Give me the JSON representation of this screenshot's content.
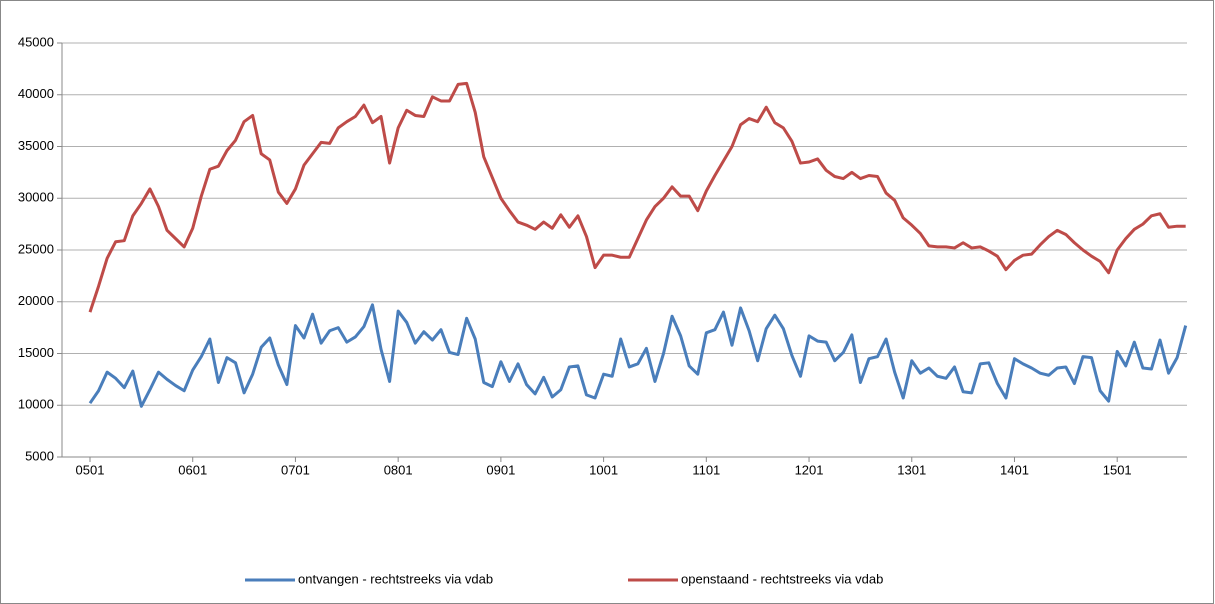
{
  "chart_data": {
    "type": "line",
    "categories": [
      "0501",
      null,
      null,
      null,
      null,
      null,
      null,
      null,
      null,
      null,
      null,
      null,
      "0601",
      null,
      null,
      null,
      null,
      null,
      null,
      null,
      null,
      null,
      null,
      null,
      "0701",
      null,
      null,
      null,
      null,
      null,
      null,
      null,
      null,
      null,
      null,
      null,
      "0801",
      null,
      null,
      null,
      null,
      null,
      null,
      null,
      null,
      null,
      null,
      null,
      "0901",
      null,
      null,
      null,
      null,
      null,
      null,
      null,
      null,
      null,
      null,
      null,
      "1001",
      null,
      null,
      null,
      null,
      null,
      null,
      null,
      null,
      null,
      null,
      null,
      "1101",
      null,
      null,
      null,
      null,
      null,
      null,
      null,
      null,
      null,
      null,
      null,
      "1201",
      null,
      null,
      null,
      null,
      null,
      null,
      null,
      null,
      null,
      null,
      null,
      "1301",
      null,
      null,
      null,
      null,
      null,
      null,
      null,
      null,
      null,
      null,
      null,
      "1401",
      null,
      null,
      null,
      null,
      null,
      null,
      null,
      null,
      null,
      null,
      null,
      "1501",
      null,
      null,
      null,
      null,
      null,
      null,
      null,
      null
    ],
    "series": [
      {
        "name": "ontvangen - rechtstreeks via vdab",
        "color": "#4a7ebb",
        "values": [
          10200,
          11400,
          13200,
          12600,
          11700,
          13300,
          9900,
          11500,
          13200,
          12500,
          11900,
          11400,
          13400,
          14700,
          16400,
          12200,
          14600,
          14100,
          11200,
          13000,
          15600,
          16500,
          13900,
          12000,
          17700,
          16500,
          18800,
          16000,
          17200,
          17500,
          16100,
          16600,
          17600,
          19700,
          15400,
          12300,
          19100,
          18000,
          16000,
          17100,
          16300,
          17300,
          15100,
          14900,
          18400,
          16400,
          12200,
          11800,
          14200,
          12300,
          14000,
          12000,
          11100,
          12700,
          10800,
          11500,
          13700,
          13800,
          11000,
          10700,
          13000,
          12800,
          16400,
          13700,
          14000,
          15500,
          12300,
          15000,
          18600,
          16700,
          13800,
          13000,
          17000,
          17300,
          19000,
          15800,
          19400,
          17200,
          14300,
          17400,
          18700,
          17400,
          14800,
          12800,
          16700,
          16200,
          16100,
          14300,
          15100,
          16800,
          12200,
          14500,
          14700,
          16400,
          13200,
          10700,
          14300,
          13100,
          13600,
          12800,
          12600,
          13700,
          11300,
          11200,
          14000,
          14100,
          12100,
          10700,
          14500,
          14000,
          13600,
          13100,
          12900,
          13600,
          13700,
          12100,
          14700,
          14600,
          11400,
          10400,
          15200,
          13800,
          16100,
          13600,
          13500,
          16300,
          13100,
          14600,
          17700
        ]
      },
      {
        "name": "openstaand - rechtstreeks via vdab",
        "color": "#be4b48",
        "values": [
          19000,
          21500,
          24200,
          25800,
          25900,
          28300,
          29500,
          30900,
          29200,
          26900,
          26100,
          25300,
          27100,
          30200,
          32800,
          33100,
          34600,
          35600,
          37400,
          38000,
          34300,
          33700,
          30600,
          29500,
          30900,
          33200,
          34300,
          35400,
          35300,
          36800,
          37400,
          37900,
          39000,
          37300,
          37900,
          33400,
          36800,
          38500,
          38000,
          37900,
          39800,
          39400,
          39400,
          41000,
          41100,
          38300,
          34000,
          32000,
          30000,
          28800,
          27700,
          27400,
          27000,
          27700,
          27100,
          28400,
          27200,
          28300,
          26300,
          23300,
          24500,
          24500,
          24300,
          24300,
          26100,
          27900,
          29200,
          30000,
          31100,
          30200,
          30200,
          28800,
          30700,
          32200,
          33600,
          35000,
          37100,
          37700,
          37400,
          38800,
          37300,
          36800,
          35500,
          33400,
          33500,
          33800,
          32700,
          32100,
          31900,
          32500,
          31900,
          32200,
          32100,
          30500,
          29800,
          28100,
          27400,
          26600,
          25400,
          25300,
          25300,
          25200,
          25700,
          25200,
          25300,
          24900,
          24400,
          23100,
          24000,
          24500,
          24600,
          25500,
          26300,
          26900,
          26500,
          25700,
          25000,
          24400,
          23900,
          22800,
          25000,
          26100,
          27000,
          27500,
          28300,
          28500,
          27200,
          27300,
          27300
        ]
      }
    ],
    "ylim": [
      5000,
      45000
    ],
    "yticks": [
      5000,
      10000,
      15000,
      20000,
      25000,
      30000,
      35000,
      40000,
      45000
    ],
    "grid": true,
    "legend": "bottom"
  }
}
